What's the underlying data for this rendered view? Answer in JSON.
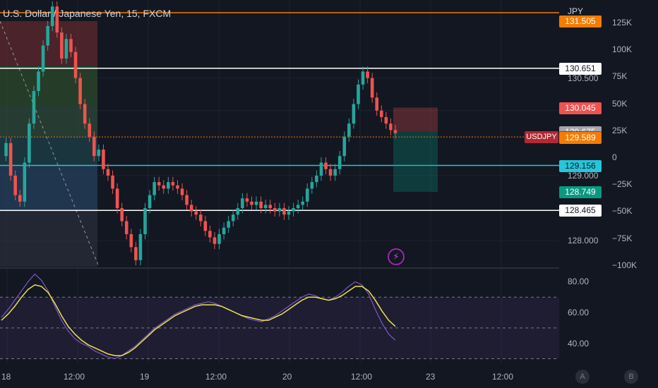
{
  "header": {
    "title": "U.S. Dollar / Japanese Yen, 15, FXCM",
    "currency": "JPY"
  },
  "price_labels": [
    {
      "text": "131.505",
      "y": 131.505,
      "bg": "#f57c00",
      "fg": "#ffffff"
    },
    {
      "text": "130.651",
      "y": 130.651,
      "bg": "#ffffff",
      "fg": "#131722"
    },
    {
      "text": "130.045",
      "y": 130.045,
      "bg": "#ef5350",
      "fg": "#ffffff"
    },
    {
      "text": "129.675",
      "y": 129.675,
      "bg": "#a3a6af",
      "fg": "#ffffff"
    },
    {
      "text": "129.595",
      "y": 129.595,
      "bg": "#b22833",
      "fg": "#ffffff"
    },
    {
      "text": "129.589",
      "y": 129.589,
      "bg": "#f57c00",
      "fg": "#ffffff"
    },
    {
      "text": "129.156",
      "y": 129.156,
      "bg": "#26c6da",
      "fg": "#131722"
    },
    {
      "text": "128.749",
      "y": 128.749,
      "bg": "#089981",
      "fg": "#ffffff"
    },
    {
      "text": "128.465",
      "y": 128.465,
      "bg": "#ffffff",
      "fg": "#131722"
    }
  ],
  "symbol_tag": {
    "text": "USDJPY",
    "bg": "#b22833"
  },
  "price_axis": {
    "ticks": [
      "130.500",
      "130.000",
      "129.000",
      "128.000"
    ],
    "values": [
      130.5,
      130.0,
      129.0,
      128.0
    ],
    "range": [
      127.6,
      131.7
    ]
  },
  "volume_axis": {
    "ticks": [
      "125K",
      "100K",
      "75K",
      "50K",
      "25K",
      "0",
      "−25K",
      "−50K",
      "−75K",
      "−100K"
    ]
  },
  "osc_axis": {
    "ticks": [
      "80.00",
      "60.00",
      "40.00"
    ],
    "values": [
      80,
      60,
      40
    ],
    "range": [
      27,
      88
    ],
    "bands": [
      70,
      50,
      30
    ]
  },
  "time_axis": {
    "labels": [
      "18",
      "12:00",
      "19",
      "12:00",
      "20",
      "12:00",
      "23",
      "12:00"
    ]
  },
  "badges": [
    "A",
    "B"
  ],
  "chart_data": {
    "type": "candlestick",
    "title": "U.S. Dollar / Japanese Yen, 15, FXCM",
    "x_labels": [
      "18",
      "12:00",
      "19",
      "12:00",
      "20",
      "12:00",
      "23",
      "12:00"
    ],
    "y_range": [
      127.6,
      131.7
    ],
    "horizontal_levels": [
      131.505,
      130.651,
      129.595,
      129.156,
      128.465
    ],
    "close_path": [
      129.3,
      129.5,
      129.0,
      128.7,
      128.6,
      129.2,
      129.8,
      130.3,
      130.6,
      131.0,
      131.3,
      131.6,
      131.2,
      130.8,
      131.1,
      130.9,
      130.5,
      130.1,
      129.8,
      129.6,
      129.3,
      129.4,
      129.1,
      129.0,
      128.8,
      128.5,
      128.3,
      128.1,
      127.9,
      127.7,
      128.1,
      128.5,
      128.7,
      128.9,
      128.85,
      128.8,
      128.9,
      128.85,
      128.8,
      128.7,
      128.55,
      128.45,
      128.4,
      128.3,
      128.15,
      128.05,
      127.95,
      128.1,
      128.2,
      128.3,
      128.4,
      128.5,
      128.65,
      128.6,
      128.55,
      128.6,
      128.5,
      128.55,
      128.5,
      128.45,
      128.5,
      128.4,
      128.45,
      128.5,
      128.55,
      128.6,
      128.8,
      128.9,
      129.0,
      129.2,
      129.1,
      129.0,
      129.1,
      129.3,
      129.6,
      129.8,
      130.1,
      130.4,
      130.6,
      130.5,
      130.2,
      130.0,
      129.9,
      129.8,
      129.7,
      129.65
    ],
    "oscillator": {
      "bands": [
        70,
        50,
        30
      ],
      "rsi": [
        57,
        62,
        68,
        74,
        80,
        85,
        81,
        74,
        64,
        55,
        48,
        43,
        40,
        38,
        35,
        33,
        31,
        30,
        32,
        35,
        38,
        42,
        46,
        50,
        53,
        56,
        59,
        61,
        63,
        65,
        66,
        67,
        66,
        64,
        62,
        60,
        58,
        56,
        55,
        54,
        56,
        58,
        61,
        64,
        67,
        70,
        72,
        71,
        69,
        68,
        70,
        73,
        77,
        80,
        78,
        72,
        62,
        53,
        46,
        42
      ],
      "signal": [
        55,
        59,
        64,
        70,
        75,
        78,
        77,
        73,
        66,
        58,
        51,
        46,
        42,
        39,
        37,
        35,
        33,
        32,
        32,
        34,
        37,
        41,
        45,
        49,
        52,
        55,
        58,
        60,
        62,
        64,
        65,
        65,
        65,
        64,
        62,
        60,
        58,
        57,
        56,
        55,
        55,
        57,
        59,
        62,
        65,
        68,
        70,
        70,
        69,
        68,
        69,
        71,
        74,
        77,
        77,
        74,
        68,
        61,
        55,
        51
      ]
    },
    "position": {
      "entry": 129.675,
      "stop": 130.045,
      "target": 128.749
    }
  }
}
